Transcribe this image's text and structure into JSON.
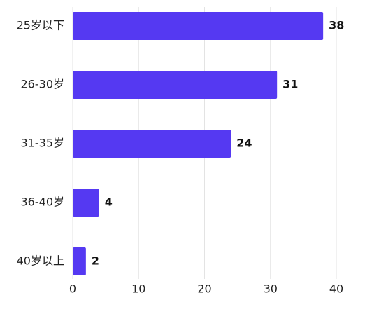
{
  "chart_data": {
    "type": "bar",
    "orientation": "horizontal",
    "categories": [
      "25岁以下",
      "26-30岁",
      "31-35岁",
      "36-40岁",
      "40岁以上"
    ],
    "values": [
      38,
      31,
      24,
      4,
      2
    ],
    "color": "#5539f2",
    "xlim": [
      0,
      40
    ],
    "xticks": [
      0,
      10,
      20,
      30,
      40
    ],
    "grid": true
  }
}
